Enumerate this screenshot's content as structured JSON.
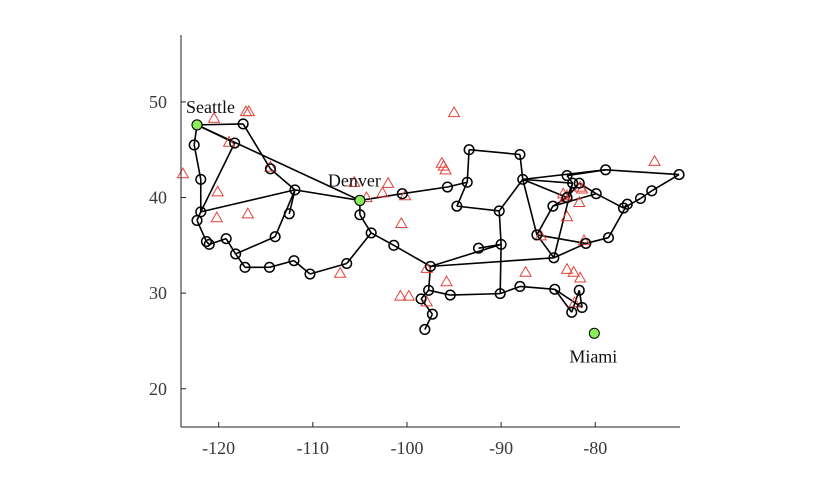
{
  "chart_data": {
    "type": "scatter",
    "title": "",
    "xlabel": "",
    "ylabel": "",
    "xlim": [
      -124,
      -71
    ],
    "ylim": [
      16,
      57
    ],
    "xticks": [
      -120,
      -110,
      -100,
      -90,
      -80
    ],
    "yticks": [
      20,
      30,
      40,
      50
    ],
    "xtick_labels": [
      "-120",
      "-110",
      "-100",
      "-90",
      "-80"
    ],
    "ytick_labels": [
      "20",
      "30",
      "40",
      "50"
    ],
    "grid": false,
    "colors": {
      "edge": "#000000",
      "node": "#000000",
      "special_node": "#8BEF5A",
      "triangle": "#E0433B",
      "axis": "#222222"
    },
    "nodes": [
      [
        -122.3,
        47.6
      ],
      [
        -117.4,
        47.7
      ],
      [
        -122.6,
        45.5
      ],
      [
        -121.9,
        41.9
      ],
      [
        -121.9,
        38.5
      ],
      [
        -122.3,
        37.6
      ],
      [
        -121.3,
        35.4
      ],
      [
        -121.0,
        35.1
      ],
      [
        -119.2,
        35.7
      ],
      [
        -118.2,
        34.1
      ],
      [
        -117.2,
        32.7
      ],
      [
        -114.6,
        32.7
      ],
      [
        -112.0,
        33.4
      ],
      [
        -110.3,
        32.0
      ],
      [
        -106.4,
        33.1
      ],
      [
        -103.8,
        36.3
      ],
      [
        -101.4,
        35.0
      ],
      [
        -105.0,
        38.2
      ],
      [
        -105.0,
        39.7
      ],
      [
        -111.9,
        40.8
      ],
      [
        -114.0,
        35.9
      ],
      [
        -112.5,
        38.3
      ],
      [
        -118.3,
        45.7
      ],
      [
        -114.5,
        43.0
      ],
      [
        -100.5,
        40.4
      ],
      [
        -95.7,
        41.1
      ],
      [
        -93.6,
        41.6
      ],
      [
        -93.4,
        45.0
      ],
      [
        -88.0,
        44.5
      ],
      [
        -94.7,
        39.1
      ],
      [
        -90.2,
        38.6
      ],
      [
        -87.7,
        41.9
      ],
      [
        -86.2,
        36.1
      ],
      [
        -90.0,
        35.1
      ],
      [
        -92.4,
        34.7
      ],
      [
        -97.5,
        32.8
      ],
      [
        -97.7,
        30.3
      ],
      [
        -98.5,
        29.4
      ],
      [
        -97.3,
        27.8
      ],
      [
        -98.1,
        26.2
      ],
      [
        -95.4,
        29.8
      ],
      [
        -90.1,
        29.95
      ],
      [
        -88.0,
        30.7
      ],
      [
        -84.3,
        30.4
      ],
      [
        -82.5,
        28.0
      ],
      [
        -81.7,
        30.3
      ],
      [
        -81.4,
        28.5
      ],
      [
        -84.4,
        33.7
      ],
      [
        -81.0,
        35.2
      ],
      [
        -78.6,
        35.8
      ],
      [
        -82.4,
        41.5
      ],
      [
        -83.0,
        40.0
      ],
      [
        -84.5,
        39.1
      ],
      [
        -81.7,
        41.5
      ],
      [
        -83.0,
        42.3
      ],
      [
        -79.9,
        40.4
      ],
      [
        -77.0,
        38.9
      ],
      [
        -76.6,
        39.3
      ],
      [
        -75.2,
        39.9
      ],
      [
        -74.0,
        40.7
      ],
      [
        -71.1,
        42.4
      ],
      [
        -78.9,
        42.9
      ]
    ],
    "edges": [
      [
        0,
        1
      ],
      [
        0,
        2
      ],
      [
        2,
        3
      ],
      [
        3,
        4
      ],
      [
        4,
        5
      ],
      [
        5,
        6
      ],
      [
        6,
        7
      ],
      [
        7,
        8
      ],
      [
        8,
        9
      ],
      [
        9,
        10
      ],
      [
        10,
        11
      ],
      [
        11,
        12
      ],
      [
        12,
        13
      ],
      [
        13,
        14
      ],
      [
        14,
        15
      ],
      [
        15,
        16
      ],
      [
        15,
        17
      ],
      [
        17,
        18
      ],
      [
        18,
        19
      ],
      [
        19,
        20
      ],
      [
        20,
        9
      ],
      [
        21,
        19
      ],
      [
        0,
        18
      ],
      [
        1,
        23
      ],
      [
        23,
        19
      ],
      [
        0,
        22
      ],
      [
        22,
        4
      ],
      [
        4,
        19
      ],
      [
        18,
        24
      ],
      [
        24,
        25
      ],
      [
        25,
        26
      ],
      [
        26,
        29
      ],
      [
        26,
        27
      ],
      [
        27,
        28
      ],
      [
        28,
        31
      ],
      [
        29,
        30
      ],
      [
        30,
        31
      ],
      [
        30,
        33
      ],
      [
        31,
        32
      ],
      [
        31,
        50
      ],
      [
        31,
        51
      ],
      [
        31,
        61
      ],
      [
        33,
        34
      ],
      [
        33,
        35
      ],
      [
        35,
        16
      ],
      [
        35,
        36
      ],
      [
        36,
        37
      ],
      [
        37,
        38
      ],
      [
        38,
        39
      ],
      [
        36,
        40
      ],
      [
        40,
        41
      ],
      [
        41,
        42
      ],
      [
        42,
        43
      ],
      [
        43,
        44
      ],
      [
        44,
        45
      ],
      [
        45,
        46
      ],
      [
        46,
        43
      ],
      [
        41,
        33
      ],
      [
        35,
        47
      ],
      [
        47,
        32
      ],
      [
        47,
        48
      ],
      [
        48,
        49
      ],
      [
        49,
        57
      ],
      [
        57,
        56
      ],
      [
        56,
        58
      ],
      [
        58,
        59
      ],
      [
        59,
        60
      ],
      [
        61,
        60
      ],
      [
        61,
        54
      ],
      [
        54,
        50
      ],
      [
        50,
        51
      ],
      [
        51,
        52
      ],
      [
        52,
        55
      ],
      [
        55,
        56
      ],
      [
        53,
        55
      ],
      [
        53,
        51
      ],
      [
        32,
        52
      ],
      [
        32,
        48
      ],
      [
        47,
        50
      ]
    ],
    "triangles": [
      [
        -123.8,
        42.5
      ],
      [
        -120.5,
        48.3
      ],
      [
        -117.1,
        49.0
      ],
      [
        -116.8,
        49.0
      ],
      [
        -118.9,
        45.8
      ],
      [
        -114.5,
        43.2
      ],
      [
        -120.1,
        40.6
      ],
      [
        -120.2,
        37.9
      ],
      [
        -116.9,
        38.3
      ],
      [
        -105.6,
        41.6
      ],
      [
        -104.3,
        40.0
      ],
      [
        -102.6,
        40.5
      ],
      [
        -102.0,
        41.5
      ],
      [
        -100.2,
        40.2
      ],
      [
        -100.6,
        37.3
      ],
      [
        -96.3,
        43.6
      ],
      [
        -96.1,
        43.3
      ],
      [
        -95.9,
        42.9
      ],
      [
        -95.0,
        48.9
      ],
      [
        -107.1,
        32.1
      ],
      [
        -97.9,
        32.6
      ],
      [
        -95.8,
        31.2
      ],
      [
        -100.7,
        29.7
      ],
      [
        -99.8,
        29.7
      ],
      [
        -97.9,
        29.1
      ],
      [
        -87.4,
        32.2
      ],
      [
        -83.4,
        40.4
      ],
      [
        -83.0,
        40.2
      ],
      [
        -83.0,
        38.0
      ],
      [
        -81.7,
        39.5
      ],
      [
        -81.6,
        41.1
      ],
      [
        -81.2,
        35.5
      ],
      [
        -85.8,
        36.0
      ],
      [
        -83.0,
        32.5
      ],
      [
        -82.3,
        32.2
      ],
      [
        -81.6,
        31.6
      ],
      [
        -82.2,
        29.0
      ],
      [
        -73.7,
        43.8
      ],
      [
        -83.2,
        40.0
      ],
      [
        -81.4,
        40.9
      ]
    ],
    "special_nodes": [
      {
        "name": "Seattle",
        "x": -122.3,
        "y": 47.6
      },
      {
        "name": "Denver",
        "x": -105.0,
        "y": 39.7
      },
      {
        "name": "Miami",
        "x": -80.1,
        "y": 25.8
      }
    ]
  }
}
